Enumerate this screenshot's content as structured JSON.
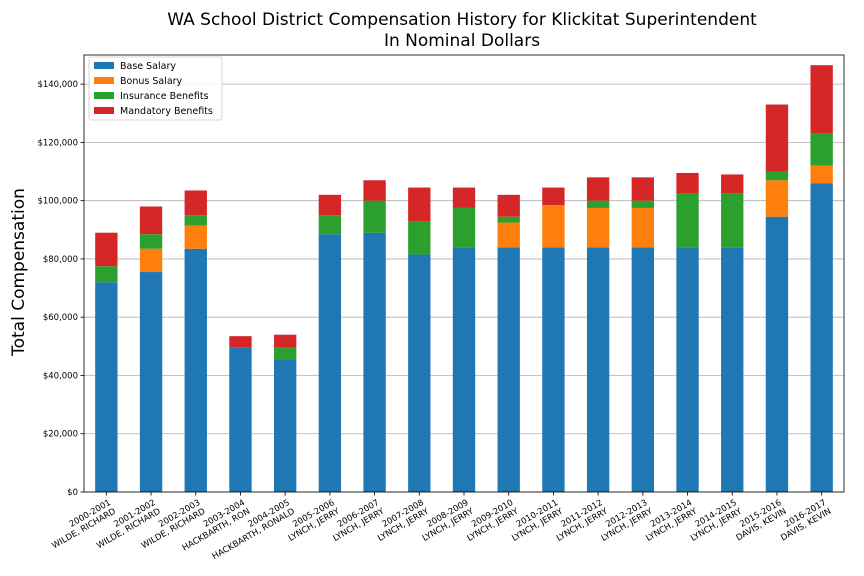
{
  "chart_data": {
    "type": "bar",
    "stacked": true,
    "title": "WA School District Compensation History for Klickitat Superintendent",
    "subtitle": "In Nominal Dollars",
    "ylabel": "Total Compensation",
    "xlabel": "",
    "ylim": [
      0,
      150000
    ],
    "yticks": [
      0,
      20000,
      40000,
      60000,
      80000,
      100000,
      120000,
      140000
    ],
    "ytick_labels": [
      "$0",
      "$20,000",
      "$40,000",
      "$60,000",
      "$80,000",
      "$100,000",
      "$120,000",
      "$140,000"
    ],
    "grid": "horizontal",
    "legend_position": "top-left",
    "categories": [
      [
        "2000-2001",
        "WILDE, RICHARD"
      ],
      [
        "2001-2002",
        "WILDE, RICHARD"
      ],
      [
        "2002-2003",
        "WILDE, RICHARD"
      ],
      [
        "2003-2004",
        "HACKBARTH, RON"
      ],
      [
        "2004-2005",
        "HACKBARTH, RONALD"
      ],
      [
        "2005-2006",
        "LYNCH, JERRY"
      ],
      [
        "2006-2007",
        "LYNCH, JERRY"
      ],
      [
        "2007-2008",
        "LYNCH, JERRY"
      ],
      [
        "2008-2009",
        "LYNCH, JERRY"
      ],
      [
        "2009-2010",
        "LYNCH, JERRY"
      ],
      [
        "2010-2011",
        "LYNCH, JERRY"
      ],
      [
        "2011-2012",
        "LYNCH, JERRY"
      ],
      [
        "2012-2013",
        "LYNCH, JERRY"
      ],
      [
        "2013-2014",
        "LYNCH, JERRY"
      ],
      [
        "2014-2015",
        "LYNCH, JERRY"
      ],
      [
        "2015-2016",
        "DAVIS, KEVIN"
      ],
      [
        "2016-2017",
        "DAVIS, KEVIN"
      ]
    ],
    "series": [
      {
        "name": "Base Salary",
        "color": "#1f77b4",
        "values": [
          72000,
          75500,
          83500,
          49500,
          45500,
          88500,
          89000,
          81500,
          84000,
          84000,
          84000,
          84000,
          84000,
          84000,
          84000,
          94500,
          106000
        ]
      },
      {
        "name": "Bonus Salary",
        "color": "#ff7f0e",
        "values": [
          0,
          8000,
          8000,
          0,
          0,
          0,
          0,
          0,
          0,
          8500,
          14500,
          13500,
          13500,
          0,
          0,
          12500,
          6000
        ]
      },
      {
        "name": "Insurance Benefits",
        "color": "#2ca02c",
        "values": [
          5500,
          5000,
          3500,
          0,
          4000,
          6500,
          11000,
          11500,
          13500,
          2000,
          0,
          2500,
          2500,
          18500,
          18500,
          3000,
          11000
        ]
      },
      {
        "name": "Mandatory Benefits",
        "color": "#d62728",
        "values": [
          11500,
          9500,
          8500,
          4000,
          4500,
          7000,
          7000,
          11500,
          7000,
          7500,
          6000,
          8000,
          8000,
          7000,
          6500,
          23000,
          23500
        ]
      }
    ]
  }
}
